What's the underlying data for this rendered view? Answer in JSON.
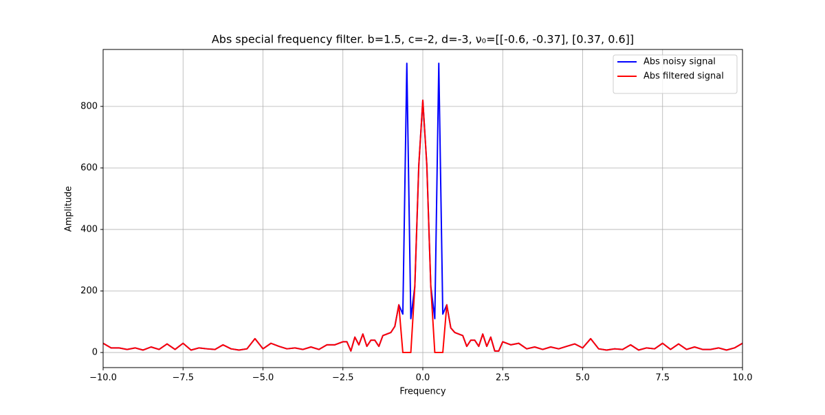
{
  "chart_data": {
    "type": "line",
    "title": "Abs special frequency filter. b=1.5, c=-2, d=-3, ν₀=[[-0.6, -0.37], [0.37, 0.6]]",
    "xlabel": "Frequency",
    "ylabel": "Amplitude",
    "x": [
      -10,
      -9.75,
      -9.5,
      -9.25,
      -9,
      -8.75,
      -8.5,
      -8.25,
      -8,
      -7.75,
      -7.5,
      -7.25,
      -7,
      -6.75,
      -6.5,
      -6.25,
      -6,
      -5.75,
      -5.5,
      -5.25,
      -5,
      -4.75,
      -4.5,
      -4.25,
      -4,
      -3.75,
      -3.5,
      -3.25,
      -3,
      -2.75,
      -2.5,
      -2.375,
      -2.25,
      -2.125,
      -2,
      -1.875,
      -1.75,
      -1.625,
      -1.5,
      -1.375,
      -1.25,
      -1.125,
      -1,
      -0.875,
      -0.75,
      -0.625,
      -0.5,
      -0.375,
      -0.25,
      -0.125,
      0,
      0.125,
      0.25,
      0.375,
      0.5,
      0.625,
      0.75,
      0.875,
      1,
      1.125,
      1.25,
      1.375,
      1.5,
      1.625,
      1.75,
      1.875,
      2,
      2.125,
      2.25,
      2.375,
      2.5,
      2.75,
      3,
      3.25,
      3.5,
      3.75,
      4,
      4.25,
      4.5,
      4.75,
      5,
      5.25,
      5.5,
      5.75,
      6,
      6.25,
      6.5,
      6.75,
      7,
      7.25,
      7.5,
      7.75,
      8,
      8.25,
      8.5,
      8.75,
      9,
      9.25,
      9.5,
      9.75,
      10
    ],
    "series": [
      {
        "name": "Abs noisy signal",
        "color": "#0000ff",
        "values": [
          30,
          15,
          15,
          10,
          15,
          8,
          18,
          10,
          28,
          10,
          30,
          8,
          15,
          12,
          10,
          25,
          12,
          8,
          12,
          45,
          12,
          30,
          20,
          12,
          15,
          10,
          18,
          10,
          25,
          25,
          35,
          35,
          5,
          50,
          25,
          60,
          20,
          40,
          40,
          20,
          55,
          60,
          65,
          85,
          155,
          125,
          940,
          110,
          215,
          610,
          820,
          610,
          215,
          110,
          940,
          125,
          155,
          80,
          65,
          60,
          55,
          20,
          40,
          40,
          20,
          60,
          20,
          50,
          5,
          5,
          35,
          25,
          30,
          12,
          18,
          10,
          18,
          12,
          20,
          28,
          15,
          45,
          12,
          8,
          12,
          10,
          25,
          8,
          15,
          12,
          30,
          10,
          28,
          10,
          18,
          10,
          10,
          15,
          8,
          15,
          30
        ]
      },
      {
        "name": "Abs filtered signal",
        "color": "#ff0000",
        "values": [
          30,
          15,
          15,
          10,
          15,
          8,
          18,
          10,
          28,
          10,
          30,
          8,
          15,
          12,
          10,
          25,
          12,
          8,
          12,
          45,
          12,
          30,
          20,
          12,
          15,
          10,
          18,
          10,
          25,
          25,
          35,
          35,
          5,
          50,
          25,
          60,
          20,
          40,
          40,
          20,
          55,
          60,
          65,
          85,
          155,
          0,
          0,
          0,
          215,
          610,
          820,
          610,
          215,
          0,
          0,
          0,
          155,
          80,
          65,
          60,
          55,
          20,
          40,
          40,
          20,
          60,
          20,
          50,
          5,
          5,
          35,
          25,
          30,
          12,
          18,
          10,
          18,
          12,
          20,
          28,
          15,
          45,
          12,
          8,
          12,
          10,
          25,
          8,
          15,
          12,
          30,
          10,
          28,
          10,
          18,
          10,
          10,
          15,
          8,
          15,
          30
        ]
      }
    ],
    "xlim": [
      -10,
      10
    ],
    "ylim": [
      -49,
      985
    ],
    "xticks": [
      {
        "value": -10,
        "label": "−10.0"
      },
      {
        "value": -7.5,
        "label": "−7.5"
      },
      {
        "value": -5,
        "label": "−5.0"
      },
      {
        "value": -2.5,
        "label": "−2.5"
      },
      {
        "value": 0,
        "label": "0.0"
      },
      {
        "value": 2.5,
        "label": "2.5"
      },
      {
        "value": 5,
        "label": "5.0"
      },
      {
        "value": 7.5,
        "label": "7.5"
      },
      {
        "value": 10,
        "label": "10.0"
      }
    ],
    "yticks": [
      0,
      200,
      400,
      600,
      800
    ],
    "grid": true,
    "legend": "upper-right"
  }
}
